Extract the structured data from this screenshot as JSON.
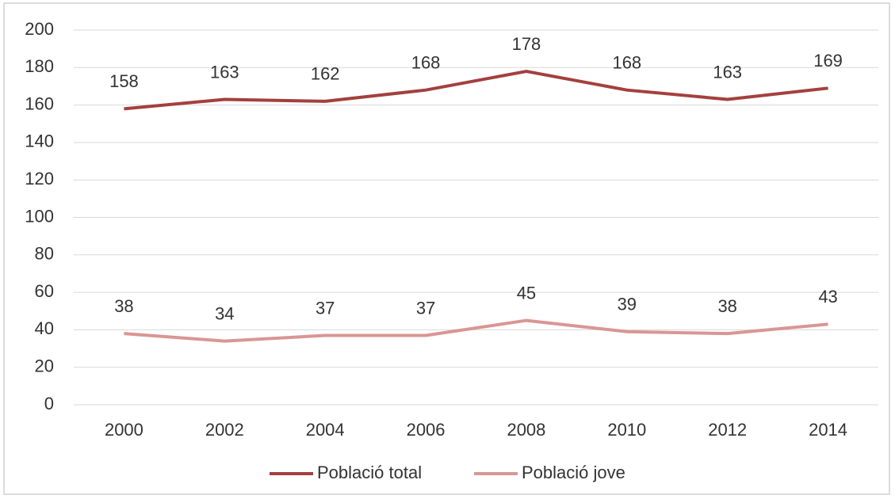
{
  "chart_data": {
    "type": "line",
    "categories": [
      "2000",
      "2002",
      "2004",
      "2006",
      "2008",
      "2010",
      "2012",
      "2014"
    ],
    "series": [
      {
        "name": "Població total",
        "color": "#a3403e",
        "values": [
          158,
          163,
          162,
          168,
          178,
          168,
          163,
          169
        ]
      },
      {
        "name": "Població jove",
        "color": "#d99694",
        "values": [
          38,
          34,
          37,
          37,
          45,
          39,
          38,
          43
        ]
      }
    ],
    "ylim": [
      0,
      200
    ],
    "yticks": [
      0,
      20,
      40,
      60,
      80,
      100,
      120,
      140,
      160,
      180,
      200
    ],
    "grid": true,
    "legend": "bottom",
    "data_labels": true
  }
}
